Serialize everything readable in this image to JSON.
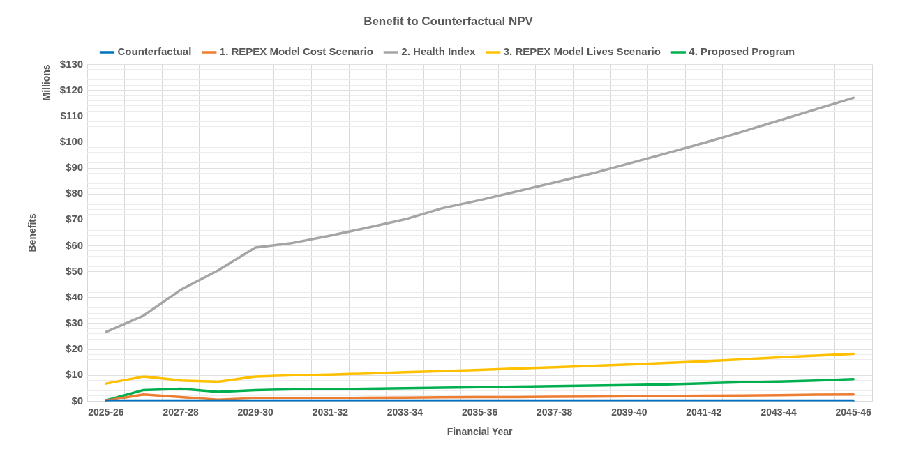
{
  "chart_data": {
    "type": "line",
    "title": "Benefit to Counterfactual NPV",
    "xlabel": "Financial Year",
    "ylabel": "Benefits",
    "annotations": [
      "Millions"
    ],
    "categories": [
      "2025-26",
      null,
      "2027-28",
      null,
      "2029-30",
      null,
      "2031-32",
      null,
      "2033-34",
      null,
      "2035-36",
      null,
      "2037-38",
      null,
      "2039-40",
      null,
      "2041-42",
      null,
      "2043-44",
      null,
      "2045-46"
    ],
    "series": [
      {
        "name": "Counterfactual",
        "color": "#0070c0",
        "values": [
          0,
          0,
          0,
          0,
          0,
          0,
          0,
          0,
          0,
          0,
          0,
          0,
          0,
          0,
          0,
          0,
          0,
          0,
          0,
          0,
          0
        ]
      },
      {
        "name": "1. REPEX Model Cost Scenario",
        "color": "#ed7d31",
        "values": [
          0.2,
          2.6,
          1.6,
          0.6,
          1.2,
          1.2,
          1.2,
          1.3,
          1.4,
          1.5,
          1.6,
          1.6,
          1.7,
          1.8,
          1.9,
          2.0,
          2.1,
          2.2,
          2.3,
          2.5,
          2.6
        ]
      },
      {
        "name": "2. Health Index",
        "color": "#a5a5a5",
        "values": [
          26.7,
          33,
          43,
          50.5,
          59.3,
          61.1,
          63.9,
          67,
          70.2,
          74.5,
          77.6,
          81,
          84.4,
          87.9,
          91.8,
          95.7,
          99.7,
          103.9,
          108.3,
          112.7,
          117.1
        ]
      },
      {
        "name": "3. REPEX Model Lives Scenario",
        "color": "#ffc000",
        "values": [
          6.8,
          9.5,
          8,
          7.5,
          9.5,
          10,
          10.3,
          10.7,
          11.2,
          11.6,
          12.1,
          12.6,
          13.1,
          13.6,
          14.2,
          14.8,
          15.4,
          16.1,
          16.9,
          17.6,
          18.3
        ]
      },
      {
        "name": "4. Proposed Program",
        "color": "#00b050",
        "values": [
          0.3,
          4.3,
          4.8,
          3.6,
          4.3,
          4.6,
          4.7,
          4.8,
          5,
          5.2,
          5.4,
          5.6,
          5.8,
          6,
          6.2,
          6.5,
          6.9,
          7.3,
          7.6,
          8,
          8.5
        ]
      }
    ],
    "ylim": [
      0,
      130
    ],
    "yticks": [
      {
        "value": 0,
        "label": "$0"
      },
      {
        "value": 2,
        "label": null
      },
      {
        "value": 4,
        "label": null
      },
      {
        "value": 6,
        "label": null
      },
      {
        "value": 8,
        "label": null
      },
      {
        "value": 10,
        "label": "$10"
      },
      {
        "value": 12,
        "label": null
      },
      {
        "value": 14,
        "label": null
      },
      {
        "value": 16,
        "label": null
      },
      {
        "value": 18,
        "label": null
      },
      {
        "value": 20,
        "label": "$20"
      },
      {
        "value": 22,
        "label": null
      },
      {
        "value": 24,
        "label": null
      },
      {
        "value": 26,
        "label": null
      },
      {
        "value": 28,
        "label": null
      },
      {
        "value": 30,
        "label": "$30"
      },
      {
        "value": 32,
        "label": null
      },
      {
        "value": 34,
        "label": null
      },
      {
        "value": 36,
        "label": null
      },
      {
        "value": 38,
        "label": null
      },
      {
        "value": 40,
        "label": "$40"
      },
      {
        "value": 42,
        "label": null
      },
      {
        "value": 44,
        "label": null
      },
      {
        "value": 46,
        "label": null
      },
      {
        "value": 48,
        "label": null
      },
      {
        "value": 50,
        "label": "$50"
      },
      {
        "value": 52,
        "label": null
      },
      {
        "value": 54,
        "label": null
      },
      {
        "value": 56,
        "label": null
      },
      {
        "value": 58,
        "label": null
      },
      {
        "value": 60,
        "label": "$60"
      },
      {
        "value": 62,
        "label": null
      },
      {
        "value": 64,
        "label": null
      },
      {
        "value": 66,
        "label": null
      },
      {
        "value": 68,
        "label": null
      },
      {
        "value": 70,
        "label": "$70"
      },
      {
        "value": 72,
        "label": null
      },
      {
        "value": 74,
        "label": null
      },
      {
        "value": 76,
        "label": null
      },
      {
        "value": 78,
        "label": null
      },
      {
        "value": 80,
        "label": "$80"
      },
      {
        "value": 82,
        "label": null
      },
      {
        "value": 84,
        "label": null
      },
      {
        "value": 86,
        "label": null
      },
      {
        "value": 88,
        "label": null
      },
      {
        "value": 90,
        "label": "$90"
      },
      {
        "value": 92,
        "label": null
      },
      {
        "value": 94,
        "label": null
      },
      {
        "value": 96,
        "label": null
      },
      {
        "value": 98,
        "label": null
      },
      {
        "value": 100,
        "label": "$100"
      },
      {
        "value": 102,
        "label": null
      },
      {
        "value": 104,
        "label": null
      },
      {
        "value": 106,
        "label": null
      },
      {
        "value": 108,
        "label": null
      },
      {
        "value": 110,
        "label": "$110"
      },
      {
        "value": 112,
        "label": null
      },
      {
        "value": 114,
        "label": null
      },
      {
        "value": 116,
        "label": null
      },
      {
        "value": 118,
        "label": null
      },
      {
        "value": 120,
        "label": "$120"
      },
      {
        "value": 122,
        "label": null
      },
      {
        "value": 124,
        "label": null
      },
      {
        "value": 126,
        "label": null
      },
      {
        "value": 128,
        "label": null
      },
      {
        "value": 130,
        "label": "$130"
      }
    ],
    "grid": true,
    "legend": "top",
    "marker": "none",
    "line_style": "solid"
  }
}
